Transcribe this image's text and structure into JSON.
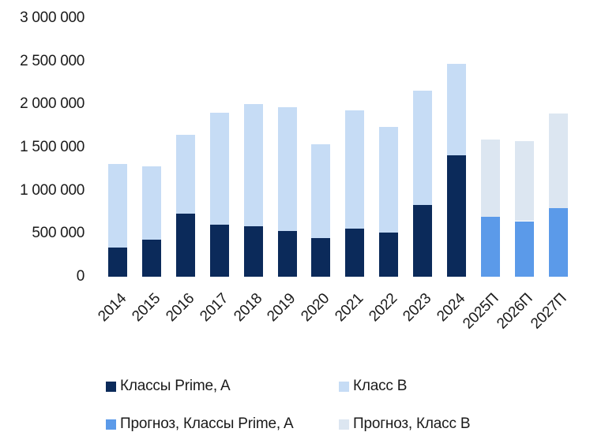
{
  "chart_data": {
    "type": "bar",
    "stacked": true,
    "title": "",
    "xlabel": "",
    "ylabel": "",
    "ylim": [
      0,
      3000000
    ],
    "yticks": [
      {
        "value": 0,
        "label": "0"
      },
      {
        "value": 500000,
        "label": "500 000"
      },
      {
        "value": 1000000,
        "label": "1 000 000"
      },
      {
        "value": 1500000,
        "label": "1 500 000"
      },
      {
        "value": 2000000,
        "label": "2 000 000"
      },
      {
        "value": 2500000,
        "label": "2 500 000"
      },
      {
        "value": 3000000,
        "label": "3 000 000"
      }
    ],
    "grid": false,
    "legend_position": "bottom",
    "categories": [
      "2014",
      "2015",
      "2016",
      "2017",
      "2018",
      "2019",
      "2020",
      "2021",
      "2022",
      "2023",
      "2024",
      "2025П",
      "2026П",
      "2027П"
    ],
    "forecast_from_index": 11,
    "series": [
      {
        "name": "Классы Prime, A",
        "color": "#0B2A5A",
        "values": [
          340000,
          430000,
          730000,
          605000,
          590000,
          535000,
          445000,
          560000,
          510000,
          830000,
          1410000,
          null,
          null,
          null
        ]
      },
      {
        "name": "Класс B",
        "color": "#C6DCF5",
        "values": [
          970000,
          850000,
          920000,
          1300000,
          1415000,
          1430000,
          1095000,
          1370000,
          1230000,
          1325000,
          1060000,
          null,
          null,
          null
        ]
      },
      {
        "name": "Прогноз, Классы Prime, A",
        "color": "#5B9AE9",
        "values": [
          null,
          null,
          null,
          null,
          null,
          null,
          null,
          null,
          null,
          null,
          null,
          695000,
          645000,
          795000
        ]
      },
      {
        "name": "Прогноз, Класс B",
        "color": "#DCE6F1",
        "values": [
          null,
          null,
          null,
          null,
          null,
          null,
          null,
          null,
          null,
          null,
          null,
          895000,
          930000,
          1095000
        ]
      }
    ]
  },
  "legend": {
    "items": [
      {
        "label": "Классы Prime, A",
        "color": "#0B2A5A"
      },
      {
        "label": "Класс B",
        "color": "#C6DCF5"
      },
      {
        "label": "Прогноз, Классы Prime, A",
        "color": "#5B9AE9"
      },
      {
        "label": "Прогноз, Класс B",
        "color": "#DCE6F1"
      }
    ]
  }
}
